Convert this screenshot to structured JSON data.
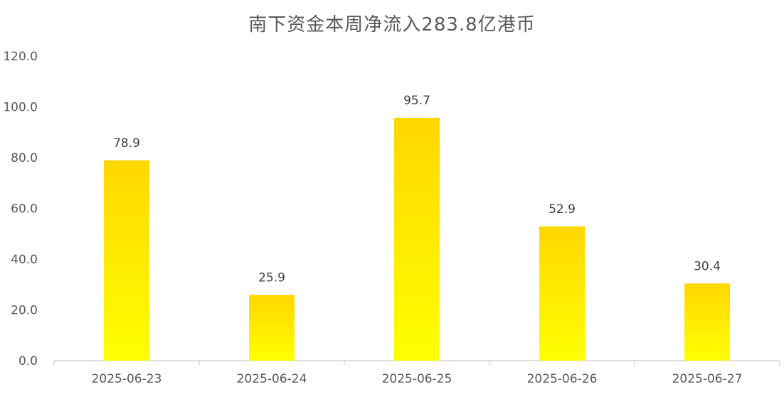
{
  "chart_data": {
    "type": "bar",
    "title": "南下资金本周净流入283.8亿港币",
    "categories": [
      "2025-06-23",
      "2025-06-24",
      "2025-06-25",
      "2025-06-26",
      "2025-06-27"
    ],
    "values": [
      78.9,
      25.9,
      95.7,
      52.9,
      30.4
    ],
    "value_labels": [
      "78.9",
      "25.9",
      "95.7",
      "52.9",
      "30.4"
    ],
    "ylim": [
      0,
      120
    ],
    "yticks": [
      "0.0",
      "20.0",
      "40.0",
      "60.0",
      "80.0",
      "100.0",
      "120.0"
    ],
    "ytick_values": [
      0,
      20,
      40,
      60,
      80,
      100,
      120
    ],
    "grid": false,
    "legend": "none"
  },
  "colors": {
    "bar_top": "#FFD700",
    "bar_bottom": "#FFFF00",
    "axis": "#BFBFBF",
    "text": "#595959"
  }
}
